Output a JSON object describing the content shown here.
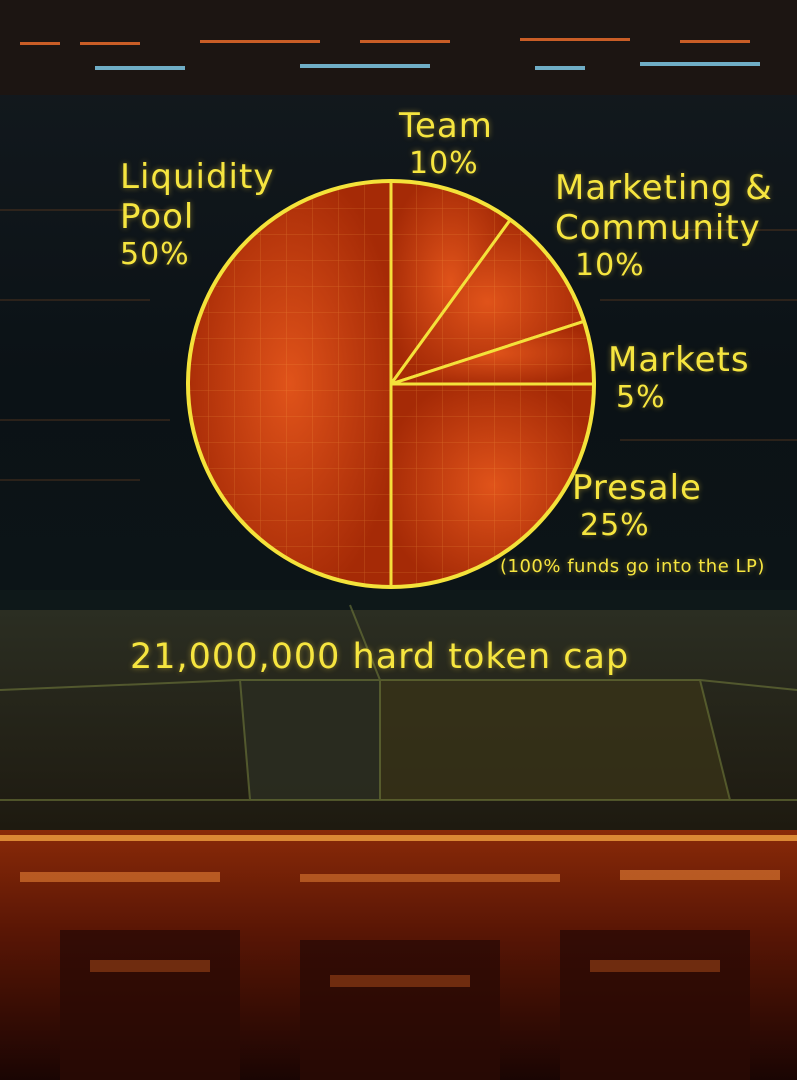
{
  "chart_data": {
    "type": "pie",
    "title": "",
    "slices": [
      {
        "label": "Team",
        "value": 10,
        "value_label": "10%"
      },
      {
        "label": "Marketing & Community",
        "value": 10,
        "value_label": "10%"
      },
      {
        "label": "Markets",
        "value": 5,
        "value_label": "5%"
      },
      {
        "label": "Presale",
        "value": 25,
        "value_label": "25%",
        "note": "(100% funds go into the LP)"
      },
      {
        "label": "Liquidity Pool",
        "value": 50,
        "value_label": "50%"
      }
    ],
    "start": "top, clockwise",
    "colors": {
      "outline": "#f4e23a",
      "fill_dark": "#a52a06",
      "fill_light": "#e0531a"
    }
  },
  "labels": {
    "team": {
      "name": "Team",
      "pct": "10%"
    },
    "marketing": {
      "line1": "Marketing &",
      "line2": "Community",
      "pct": "10%"
    },
    "markets": {
      "name": "Markets",
      "pct": "5%"
    },
    "presale": {
      "name": "Presale",
      "pct": "25%",
      "note": "(100% funds go into the LP)"
    },
    "liquidity": {
      "line1": "Liquidity",
      "line2": "Pool",
      "pct": "50%"
    }
  },
  "footer": {
    "cap_text": "21,000,000 hard token cap"
  },
  "theme": {
    "text": "#f6e53f",
    "accent_orange": "#e8501a",
    "backdrop": "#0b1217"
  }
}
